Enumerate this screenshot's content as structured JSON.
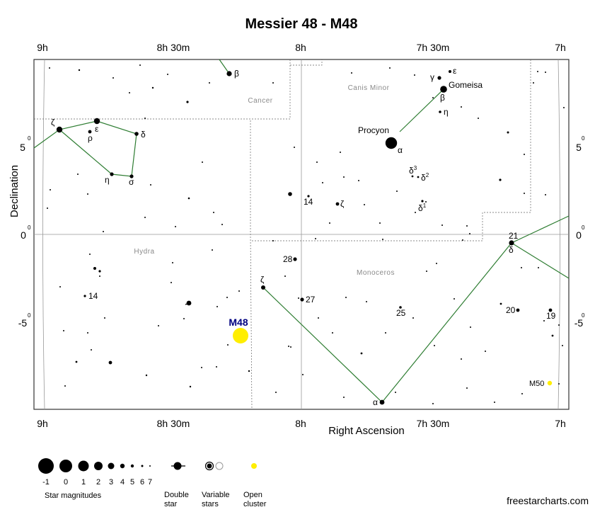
{
  "title": "Messier 48 - M48",
  "ra_labels": [
    "9h",
    "8h 30m",
    "8h",
    "7h 30m",
    "7h"
  ],
  "dec_labels": [
    "5",
    "0",
    "-5"
  ],
  "degree_symbol": "0",
  "xlabel": "Right Ascension",
  "ylabel": "Declination",
  "constellations": [
    "Cancer",
    "Canis Minor",
    "Hydra",
    "Monoceros"
  ],
  "stars": {
    "zeta_hya": "ζ",
    "eps_hya": "ε",
    "rho_hya": "ρ",
    "delta_hya": "δ",
    "eta_hya": "η",
    "sigma_hya": "σ",
    "beta_cnc": "β",
    "gamma_cmi": "γ",
    "eps_cmi": "ε",
    "beta_cmi": "β",
    "gomeisa": "Gomeisa",
    "eta_cmi": "η",
    "procyon": "Procyon",
    "alpha_cmi": "α",
    "delta3": "δ",
    "delta3_sup": "3",
    "delta2": "δ",
    "delta2_sup": "2",
    "delta1": "δ",
    "delta1_sup": "1",
    "s14_cmi": "14",
    "zeta_cmi": "ζ",
    "s21": "21",
    "delta_mon": "δ",
    "s28": "28",
    "zeta_mon": "ζ",
    "s27": "27",
    "s25": "25",
    "s14_hya": "14",
    "s20": "20",
    "s19": "19",
    "alpha_mon": "α"
  },
  "clusters": {
    "m48": "M48",
    "m50": "M50"
  },
  "legend": {
    "magnitudes": [
      "-1",
      "0",
      "1",
      "2",
      "3",
      "4",
      "5",
      "6",
      "7"
    ],
    "magnitudes_caption": "Star magnitudes",
    "double_star": [
      "Double",
      "star"
    ],
    "variable_stars": [
      "Variable",
      "stars"
    ],
    "open_cluster": [
      "Open",
      "cluster"
    ]
  },
  "credit": "freestarcharts.com",
  "colors": {
    "line": "#2e7d32",
    "grid": "#999999",
    "m48_label": "#000080",
    "cluster": "#ffee00"
  }
}
